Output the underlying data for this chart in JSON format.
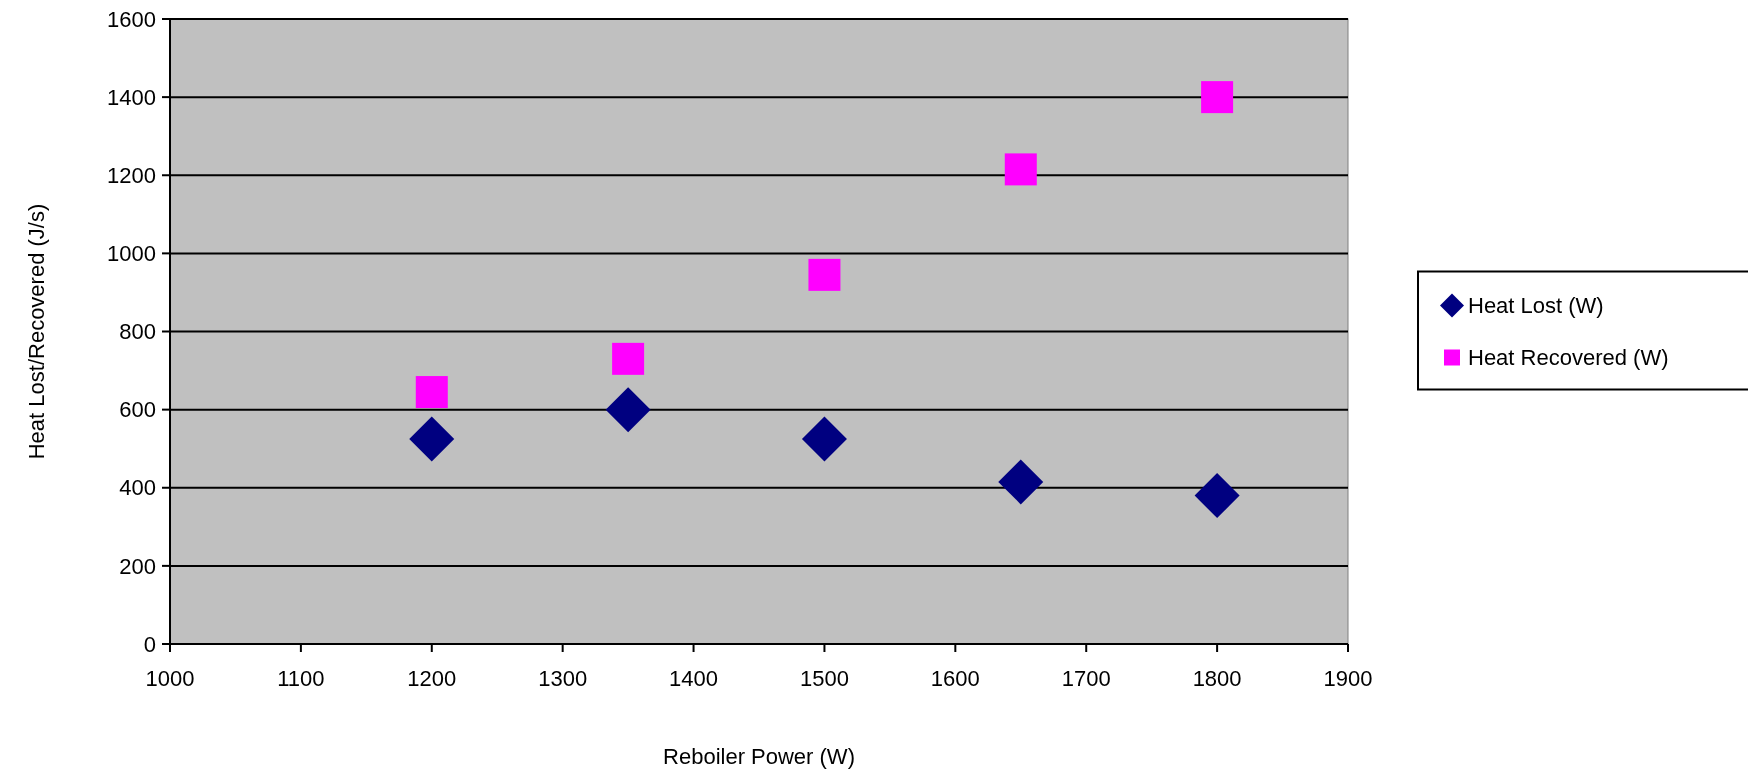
{
  "chart_data": {
    "type": "scatter",
    "xlabel": "Reboiler Power (W)",
    "ylabel": "Heat Lost/Recovered (J/s)",
    "x": [
      1200,
      1350,
      1500,
      1650,
      1800
    ],
    "series": [
      {
        "name": "Heat Lost (W)",
        "color": "#000080",
        "marker": "diamond",
        "values": [
          525,
          600,
          525,
          415,
          380
        ]
      },
      {
        "name": "Heat Recovered (W)",
        "color": "#ff00ff",
        "marker": "square",
        "values": [
          645,
          730,
          945,
          1215,
          1400
        ]
      }
    ],
    "xlim": [
      1000,
      1900
    ],
    "xticks": [
      1000,
      1100,
      1200,
      1300,
      1400,
      1500,
      1600,
      1700,
      1800,
      1900
    ],
    "ylim": [
      0,
      1600
    ],
    "yticks": [
      0,
      200,
      400,
      600,
      800,
      1000,
      1200,
      1400,
      1600
    ],
    "grid": "y",
    "legend": "right"
  }
}
